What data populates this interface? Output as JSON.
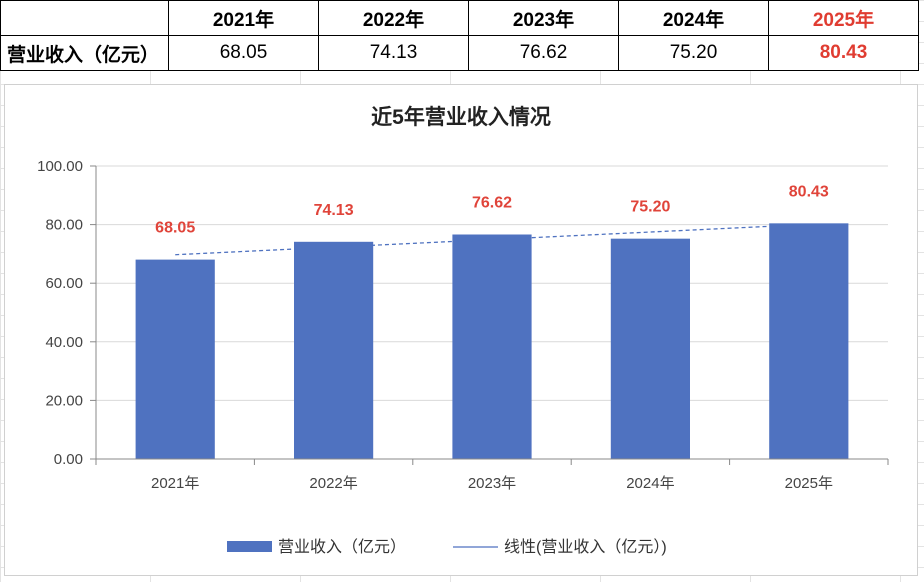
{
  "table": {
    "corner": "",
    "row_label": "营业收入（亿元）",
    "years": [
      "2021年",
      "2022年",
      "2023年",
      "2024年",
      "2025年"
    ],
    "values": [
      "68.05",
      "74.13",
      "76.62",
      "75.20",
      "80.43"
    ],
    "highlight_color": "#e03c31"
  },
  "chart_data": {
    "type": "bar",
    "title": "近5年营业收入情况",
    "categories": [
      "2021年",
      "2022年",
      "2023年",
      "2024年",
      "2025年"
    ],
    "series": [
      {
        "name": "营业收入（亿元）",
        "values": [
          68.05,
          74.13,
          76.62,
          75.2,
          80.43
        ],
        "color": "#4f72c0"
      }
    ],
    "trendline": {
      "name": "线性(营业收入（亿元）)",
      "type": "linear",
      "style": "dashed",
      "color": "#4f72c0"
    },
    "data_labels": [
      "68.05",
      "74.13",
      "76.62",
      "75.20",
      "80.43"
    ],
    "data_label_color": "#e0443a",
    "ylim": [
      0,
      100
    ],
    "yticks": [
      0,
      20,
      40,
      60,
      80,
      100
    ],
    "ytick_labels": [
      "0.00",
      "20.00",
      "40.00",
      "60.00",
      "80.00",
      "100.00"
    ],
    "xlabel": "",
    "ylabel": "",
    "grid": true,
    "legend_position": "bottom"
  }
}
